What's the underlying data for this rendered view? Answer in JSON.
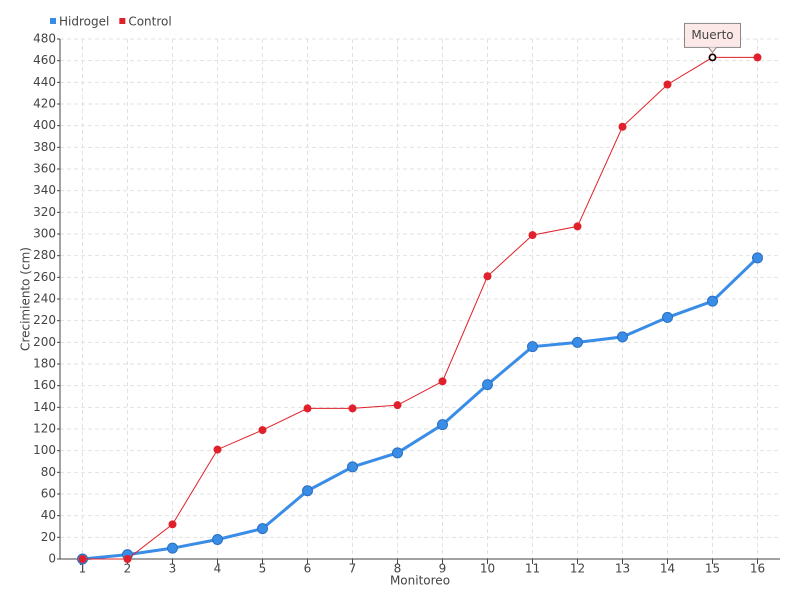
{
  "chart_data": {
    "type": "line",
    "x_label": "Monitoreo",
    "y_label": "Crecimiento (cm)",
    "categories": [
      "1",
      "2",
      "3",
      "4",
      "5",
      "6",
      "7",
      "8",
      "9",
      "10",
      "11",
      "12",
      "13",
      "14",
      "15",
      "16"
    ],
    "series": [
      {
        "name": "Hidrogel",
        "color": "#3a8de6",
        "values": [
          0,
          4,
          10,
          18,
          28,
          63,
          85,
          98,
          124,
          161,
          196,
          200,
          205,
          223,
          238,
          278
        ]
      },
      {
        "name": "Control",
        "color": "#e0202a",
        "values": [
          0,
          0,
          32,
          101,
          119,
          139,
          139,
          142,
          164,
          261,
          299,
          307,
          399,
          438,
          463,
          463
        ]
      }
    ],
    "annotation": {
      "text": "Muerto",
      "series": "Control",
      "x": "15"
    },
    "ylim": [
      0,
      480
    ],
    "yticks": [
      0,
      20,
      40,
      60,
      80,
      100,
      120,
      140,
      160,
      180,
      200,
      220,
      240,
      260,
      280,
      300,
      320,
      340,
      360,
      380,
      400,
      420,
      440,
      460,
      480
    ],
    "grid": true,
    "legend": "top-left"
  }
}
